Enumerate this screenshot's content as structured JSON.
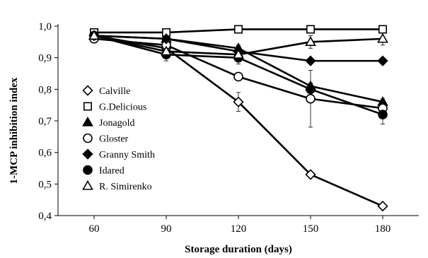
{
  "chart_data": {
    "type": "line",
    "title": "",
    "xlabel": "Storage duration (days)",
    "ylabel": "1-MCP inhibition index",
    "x": [
      60,
      90,
      120,
      150,
      180
    ],
    "x_tick_labels": [
      "60",
      "90",
      "120",
      "150",
      "180"
    ],
    "xlim": [
      45,
      195
    ],
    "ylim": [
      0.4,
      1.0
    ],
    "y_ticks": [
      0.4,
      0.5,
      0.6,
      0.7,
      0.8,
      0.9,
      1.0
    ],
    "y_tick_labels": [
      "0,4",
      "0,5",
      "0,6",
      "0,7",
      "0,8",
      "0,9",
      "1,0"
    ],
    "grid": false,
    "legend_position": "left",
    "series": [
      {
        "name": "Calville",
        "marker": "diamond-open",
        "values": [
          0.97,
          0.93,
          0.76,
          0.53,
          0.43
        ],
        "errors": [
          0.02,
          0.02,
          0.03,
          0.01,
          0.01
        ]
      },
      {
        "name": "G.Delicious",
        "marker": "square-open",
        "values": [
          0.98,
          0.98,
          0.99,
          0.99,
          0.99
        ],
        "errors": [
          0.01,
          0.01,
          0.01,
          0.005,
          0.005
        ]
      },
      {
        "name": "Jonagold",
        "marker": "triangle-filled",
        "values": [
          0.97,
          0.96,
          0.93,
          0.81,
          0.76
        ],
        "errors": [
          0.01,
          0.01,
          0.01,
          0.01,
          0.01
        ]
      },
      {
        "name": "Gloster",
        "marker": "circle-open",
        "values": [
          0.96,
          0.94,
          0.84,
          0.77,
          0.74
        ],
        "errors": [
          0.01,
          0.02,
          0.01,
          0.09,
          0.02
        ]
      },
      {
        "name": "Granny Smith",
        "marker": "diamond-filled",
        "values": [
          0.97,
          0.96,
          0.92,
          0.89,
          0.89
        ],
        "errors": [
          0.01,
          0.01,
          0.01,
          0.01,
          0.01
        ]
      },
      {
        "name": "Idared",
        "marker": "circle-filled",
        "values": [
          0.97,
          0.91,
          0.9,
          0.8,
          0.72
        ],
        "errors": [
          0.01,
          0.02,
          0.02,
          0.02,
          0.03
        ]
      },
      {
        "name": "R. Simirenko",
        "marker": "triangle-open",
        "values": [
          0.97,
          0.92,
          0.91,
          0.95,
          0.96
        ],
        "errors": [
          0.01,
          0.01,
          0.01,
          0.02,
          0.02
        ]
      }
    ]
  }
}
